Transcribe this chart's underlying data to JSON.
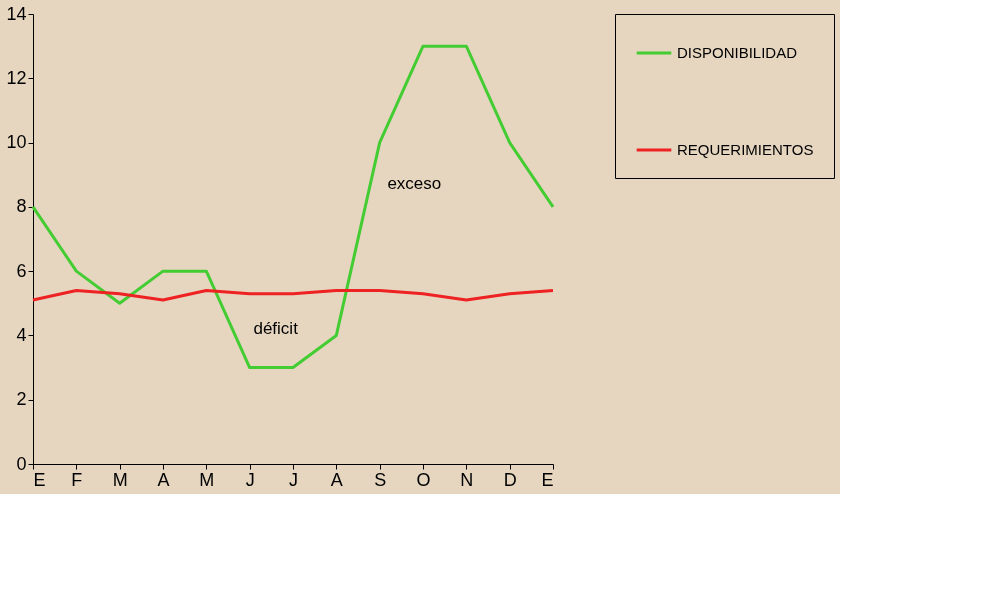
{
  "chart_data": {
    "type": "line",
    "categories": [
      "E",
      "F",
      "M",
      "A",
      "M",
      "J",
      "J",
      "A",
      "S",
      "O",
      "N",
      "D",
      "E"
    ],
    "series": [
      {
        "name": "DISPONIBILIDAD",
        "color": "#44cc33",
        "values": [
          8,
          6,
          5,
          6,
          6,
          3,
          3,
          4,
          10,
          13,
          13,
          10,
          8
        ]
      },
      {
        "name": "REQUERIMIENTOS",
        "color": "#ee2222",
        "values": [
          5.1,
          5.4,
          5.3,
          5.1,
          5.4,
          5.3,
          5.3,
          5.4,
          5.4,
          5.3,
          5.1,
          5.3,
          5.4
        ]
      }
    ],
    "ylim": [
      0,
      14
    ],
    "yticks": [
      0,
      2,
      4,
      6,
      8,
      10,
      12,
      14
    ],
    "grid": false,
    "legend": "right",
    "marker": "none",
    "line_style": "solid",
    "annotations": [
      "exceso",
      "déficit"
    ]
  }
}
